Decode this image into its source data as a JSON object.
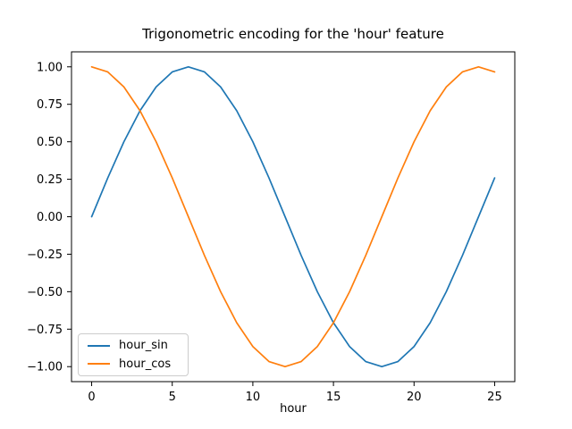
{
  "chart_data": {
    "type": "line",
    "title": "Trigonometric encoding for the 'hour' feature",
    "xlabel": "hour",
    "ylabel": "",
    "x": [
      0,
      1,
      2,
      3,
      4,
      5,
      6,
      7,
      8,
      9,
      10,
      11,
      12,
      13,
      14,
      15,
      16,
      17,
      18,
      19,
      20,
      21,
      22,
      23,
      24,
      25
    ],
    "series": [
      {
        "name": "hour_sin",
        "color": "#1f77b4",
        "values": [
          0.0,
          0.2588,
          0.5,
          0.7071,
          0.866,
          0.9659,
          1.0,
          0.9659,
          0.866,
          0.7071,
          0.5,
          0.2588,
          0.0,
          -0.2588,
          -0.5,
          -0.7071,
          -0.866,
          -0.9659,
          -1.0,
          -0.9659,
          -0.866,
          -0.7071,
          -0.5,
          -0.2588,
          0.0,
          0.2588
        ]
      },
      {
        "name": "hour_cos",
        "color": "#ff7f0e",
        "values": [
          1.0,
          0.9659,
          0.866,
          0.7071,
          0.5,
          0.2588,
          0.0,
          -0.2588,
          -0.5,
          -0.7071,
          -0.866,
          -0.9659,
          -1.0,
          -0.9659,
          -0.866,
          -0.7071,
          -0.5,
          -0.2588,
          0.0,
          0.2588,
          0.5,
          0.7071,
          0.866,
          0.9659,
          1.0,
          0.9659
        ]
      }
    ],
    "xlim": [
      -1.25,
      26.25
    ],
    "ylim": [
      -1.1,
      1.1
    ],
    "xticks": [
      0,
      5,
      10,
      15,
      20,
      25
    ],
    "xtick_labels": [
      "0",
      "5",
      "10",
      "15",
      "20",
      "25"
    ],
    "yticks": [
      1.0,
      0.75,
      0.5,
      0.25,
      0.0,
      -0.25,
      -0.5,
      -0.75,
      -1.0
    ],
    "ytick_labels": [
      "1.00",
      "0.75",
      "0.50",
      "0.25",
      "0.00",
      "−0.25",
      "−0.50",
      "−0.75",
      "−1.00"
    ],
    "grid": false,
    "line_width": 1.7,
    "axis_color": "#000000",
    "legend": {
      "position": "lower left",
      "entries": [
        "hour_sin",
        "hour_cos"
      ]
    }
  }
}
